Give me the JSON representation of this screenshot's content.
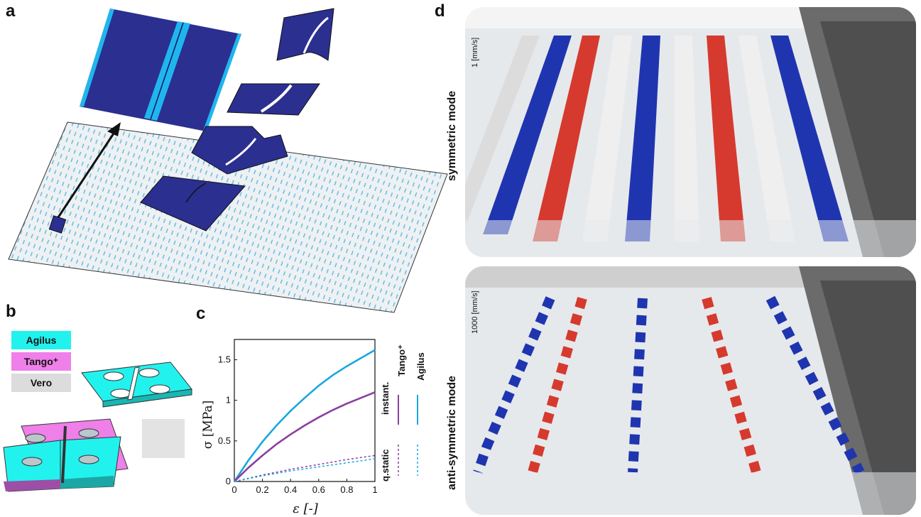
{
  "panels": {
    "a": {
      "letter": "a"
    },
    "b": {
      "letter": "b",
      "materials": [
        {
          "name": "Agilus",
          "color": "#22f2ee"
        },
        {
          "name": "Tango⁺",
          "color": "#ef7fe9"
        },
        {
          "name": "Vero",
          "color": "#dcdcdc"
        }
      ]
    },
    "c": {
      "letter": "c"
    },
    "d": {
      "letter": "d",
      "top": {
        "mode": "symmetric mode",
        "speed": "1 [mm/s]"
      },
      "bottom": {
        "mode": "anti-symmetric mode",
        "speed": "1000 [mm/s]"
      }
    }
  },
  "chart_data": {
    "type": "line",
    "xlabel": "ε [-]",
    "ylabel": "σ [MPa]",
    "xlim": [
      0,
      1
    ],
    "ylim": [
      0,
      1.75
    ],
    "xticks": [
      "0",
      "0.2",
      "0.4",
      "0.6",
      "0.8",
      "1"
    ],
    "yticks": [
      "0",
      "0.5",
      "1",
      "1.5"
    ],
    "legend": {
      "row_labels": [
        "instant.",
        "q.static"
      ],
      "col_labels": [
        "Tango⁺",
        "Agilus"
      ]
    },
    "series": [
      {
        "name": "Agilus instant.",
        "style": "solid",
        "color": "#1aa7e0",
        "x": [
          0,
          0.1,
          0.2,
          0.3,
          0.4,
          0.5,
          0.6,
          0.7,
          0.8,
          0.9,
          1.0
        ],
        "y": [
          0,
          0.26,
          0.49,
          0.69,
          0.87,
          1.03,
          1.18,
          1.31,
          1.42,
          1.52,
          1.62
        ]
      },
      {
        "name": "Tango⁺ instant.",
        "style": "solid",
        "color": "#8a3f9f",
        "x": [
          0,
          0.1,
          0.2,
          0.3,
          0.4,
          0.5,
          0.6,
          0.7,
          0.8,
          0.9,
          1.0
        ],
        "y": [
          0,
          0.17,
          0.32,
          0.46,
          0.58,
          0.69,
          0.79,
          0.88,
          0.96,
          1.03,
          1.1
        ]
      },
      {
        "name": "Tango⁺ q.static",
        "style": "dashed",
        "color": "#8a3f9f",
        "x": [
          0,
          0.2,
          0.4,
          0.6,
          0.8,
          1.0
        ],
        "y": [
          0,
          0.08,
          0.15,
          0.21,
          0.27,
          0.32
        ]
      },
      {
        "name": "Agilus q.static",
        "style": "dashed",
        "color": "#1aa7e0",
        "x": [
          0,
          0.2,
          0.4,
          0.6,
          0.8,
          1.0
        ],
        "y": [
          0,
          0.07,
          0.13,
          0.18,
          0.23,
          0.28
        ]
      }
    ]
  }
}
